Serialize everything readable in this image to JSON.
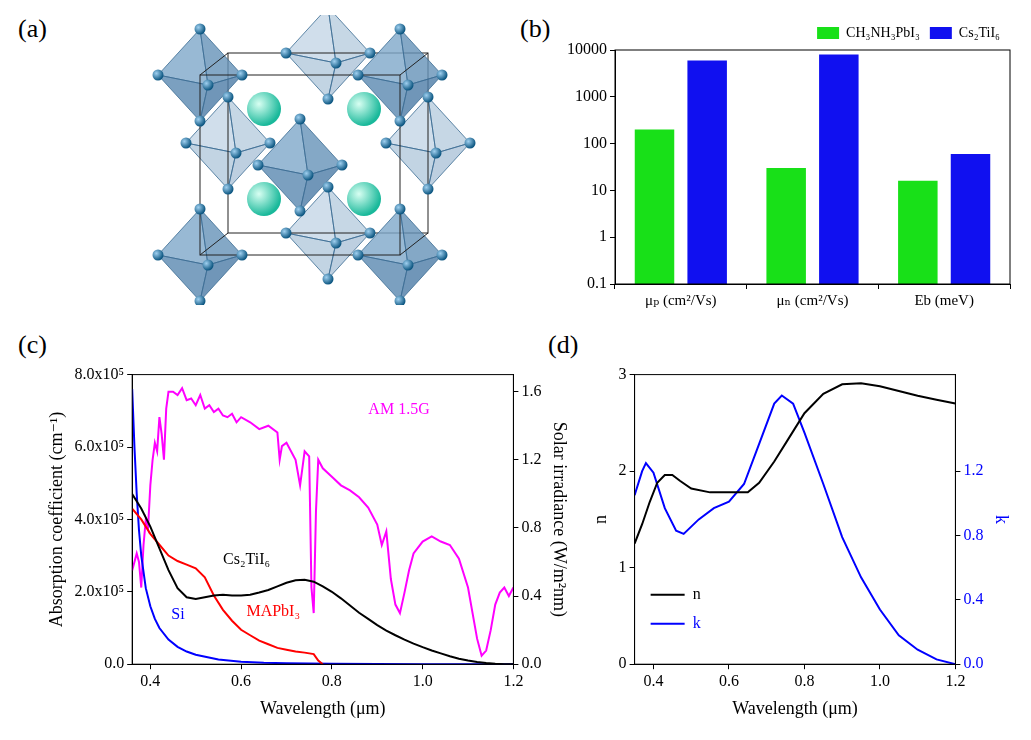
{
  "chart_data": [
    {
      "type": "diagram",
      "panel": "(a)"
    },
    {
      "type": "bar",
      "panel": "(b)",
      "categories": [
        "μₚ (cm²/Vs)",
        "μₙ (cm²/Vs)",
        "Eb (meV)"
      ],
      "series": [
        {
          "name": "CH₃NH₃PbI₃",
          "color": "#18e018",
          "values": [
            200,
            30,
            16
          ]
        },
        {
          "name": "Cs₂TiI₆",
          "color": "#1010f0",
          "values": [
            6000,
            8000,
            60
          ]
        }
      ],
      "log": "y",
      "ylim": [
        0.1,
        10000
      ],
      "yticks": [
        0.1,
        1,
        10,
        100,
        1000,
        10000
      ],
      "legend": "upper right",
      "grid": false
    },
    {
      "type": "line",
      "panel": "(c)",
      "x_label": "Wavelength (μm)",
      "y_label": "Absorption coefficient (cm⁻¹)",
      "y2_label": "Solar irradiance (W/m²nm)",
      "xlim": [
        0.36,
        1.2
      ],
      "xticks": [
        0.4,
        0.6,
        0.8,
        {
          "value": 1,
          "label": "1.0"
        },
        1.2
      ],
      "ylim": [
        0,
        800000
      ],
      "yticks": [
        {
          "value": 0,
          "label": "0.0"
        },
        {
          "value": 200000,
          "label": "2.0x10⁵"
        },
        {
          "value": 400000,
          "label": "4.0x10⁵"
        },
        {
          "value": 600000,
          "label": "6.0x10⁵"
        },
        {
          "value": 800000,
          "label": "8.0x10⁵"
        }
      ],
      "y2lim": [
        0,
        1.7
      ],
      "y2ticks": [
        {
          "value": 0,
          "label": "0.0"
        },
        0.4,
        0.8,
        1.2,
        1.6
      ],
      "grid": false,
      "series": [
        {
          "name": "Cs₂TiI₆",
          "color": "#000000",
          "x": [
            0.36,
            0.37,
            0.38,
            0.4,
            0.42,
            0.44,
            0.46,
            0.48,
            0.5,
            0.52,
            0.54,
            0.56,
            0.58,
            0.6,
            0.62,
            0.64,
            0.66,
            0.68,
            0.7,
            0.72,
            0.74,
            0.76,
            0.78,
            0.8,
            0.82,
            0.84,
            0.86,
            0.88,
            0.9,
            0.92,
            0.94,
            0.96,
            0.98,
            1.0,
            1.02,
            1.04,
            1.06,
            1.08,
            1.1,
            1.12,
            1.14,
            1.16,
            1.18,
            1.2
          ],
          "values": [
            470000,
            450000,
            430000,
            380000,
            320000,
            260000,
            210000,
            185000,
            180000,
            185000,
            190000,
            192000,
            190000,
            190000,
            192000,
            198000,
            205000,
            215000,
            225000,
            232000,
            233000,
            228000,
            215000,
            200000,
            182000,
            162000,
            142000,
            125000,
            108000,
            93000,
            80000,
            68000,
            57000,
            47000,
            38000,
            30000,
            22000,
            15000,
            10000,
            6000,
            3000,
            1000,
            0,
            0
          ]
        },
        {
          "name": "MAPbI₃",
          "color": "#ff0000",
          "x": [
            0.36,
            0.38,
            0.4,
            0.42,
            0.44,
            0.46,
            0.48,
            0.5,
            0.52,
            0.54,
            0.56,
            0.58,
            0.6,
            0.62,
            0.64,
            0.66,
            0.68,
            0.7,
            0.72,
            0.74,
            0.76,
            0.77,
            0.78
          ],
          "values": [
            430000,
            400000,
            360000,
            330000,
            300000,
            285000,
            275000,
            265000,
            240000,
            190000,
            150000,
            120000,
            95000,
            80000,
            65000,
            55000,
            45000,
            40000,
            35000,
            32000,
            28000,
            10000,
            0
          ]
        },
        {
          "name": "Si",
          "color": "#0000ff",
          "x": [
            0.36,
            0.365,
            0.37,
            0.375,
            0.38,
            0.39,
            0.4,
            0.41,
            0.42,
            0.44,
            0.46,
            0.48,
            0.5,
            0.55,
            0.6,
            0.65,
            0.7,
            0.8,
            0.9,
            1.0,
            1.1,
            1.2
          ],
          "values": [
            760000,
            600000,
            470000,
            370000,
            300000,
            210000,
            160000,
            125000,
            100000,
            68000,
            48000,
            35000,
            26000,
            13000,
            7000,
            4000,
            2500,
            1000,
            500,
            200,
            50,
            0
          ]
        },
        {
          "name": "AM 1.5G",
          "color": "#ff00ff",
          "axis": "y2",
          "x": [
            0.36,
            0.37,
            0.375,
            0.38,
            0.385,
            0.39,
            0.395,
            0.4,
            0.405,
            0.41,
            0.415,
            0.42,
            0.425,
            0.43,
            0.435,
            0.44,
            0.45,
            0.46,
            0.47,
            0.48,
            0.49,
            0.5,
            0.51,
            0.52,
            0.53,
            0.54,
            0.55,
            0.56,
            0.57,
            0.58,
            0.59,
            0.6,
            0.62,
            0.64,
            0.66,
            0.68,
            0.685,
            0.69,
            0.7,
            0.72,
            0.73,
            0.74,
            0.75,
            0.755,
            0.76,
            0.765,
            0.77,
            0.78,
            0.8,
            0.82,
            0.84,
            0.86,
            0.88,
            0.9,
            0.91,
            0.92,
            0.93,
            0.94,
            0.95,
            0.96,
            0.97,
            0.98,
            1.0,
            1.02,
            1.04,
            1.06,
            1.08,
            1.1,
            1.11,
            1.12,
            1.13,
            1.14,
            1.15,
            1.16,
            1.17,
            1.18,
            1.19,
            1.2
          ],
          "values": [
            0.55,
            0.65,
            0.6,
            0.45,
            0.7,
            0.85,
            0.8,
            1.05,
            1.2,
            1.3,
            1.25,
            1.45,
            1.35,
            1.2,
            1.5,
            1.6,
            1.6,
            1.58,
            1.62,
            1.55,
            1.56,
            1.52,
            1.58,
            1.5,
            1.52,
            1.48,
            1.5,
            1.46,
            1.45,
            1.47,
            1.42,
            1.45,
            1.42,
            1.38,
            1.4,
            1.36,
            1.2,
            1.28,
            1.3,
            1.2,
            1.05,
            1.25,
            1.22,
            0.45,
            0.3,
            0.9,
            1.2,
            1.15,
            1.1,
            1.05,
            1.02,
            0.98,
            0.92,
            0.82,
            0.7,
            0.78,
            0.5,
            0.35,
            0.3,
            0.42,
            0.55,
            0.65,
            0.72,
            0.75,
            0.72,
            0.7,
            0.62,
            0.45,
            0.3,
            0.15,
            0.05,
            0.08,
            0.2,
            0.35,
            0.42,
            0.45,
            0.4,
            0.45
          ]
        }
      ]
    },
    {
      "type": "line",
      "panel": "(d)",
      "x_label": "Wavelength (μm)",
      "y_label": "n",
      "y2_label": "k",
      "xlim": [
        0.35,
        1.2
      ],
      "xticks": [
        0.4,
        0.6,
        0.8,
        {
          "value": 1,
          "label": "1.0"
        },
        1.2
      ],
      "ylim": [
        0,
        3
      ],
      "yticks": [
        0,
        1,
        2,
        3
      ],
      "y2lim": [
        0,
        1.8
      ],
      "y2ticks": [
        {
          "value": 0,
          "label": "0.0"
        },
        0.4,
        0.8,
        1.2
      ],
      "grid": false,
      "legend": "lower left",
      "series": [
        {
          "name": "n",
          "color": "#000000",
          "x": [
            0.35,
            0.37,
            0.39,
            0.41,
            0.43,
            0.45,
            0.47,
            0.5,
            0.55,
            0.6,
            0.65,
            0.68,
            0.72,
            0.76,
            0.8,
            0.85,
            0.9,
            0.95,
            1.0,
            1.05,
            1.1,
            1.15,
            1.2
          ],
          "values": [
            1.25,
            1.45,
            1.68,
            1.88,
            1.96,
            1.96,
            1.9,
            1.82,
            1.78,
            1.78,
            1.78,
            1.88,
            2.1,
            2.35,
            2.6,
            2.8,
            2.9,
            2.91,
            2.88,
            2.83,
            2.78,
            2.74,
            2.7
          ]
        },
        {
          "name": "k",
          "color": "#0000ff",
          "axis": "y2",
          "x": [
            0.35,
            0.37,
            0.38,
            0.4,
            0.43,
            0.46,
            0.48,
            0.52,
            0.56,
            0.6,
            0.64,
            0.68,
            0.72,
            0.74,
            0.77,
            0.8,
            0.85,
            0.9,
            0.95,
            1.0,
            1.05,
            1.1,
            1.15,
            1.2
          ],
          "values": [
            1.05,
            1.2,
            1.25,
            1.19,
            0.97,
            0.83,
            0.81,
            0.9,
            0.97,
            1.01,
            1.12,
            1.37,
            1.62,
            1.67,
            1.62,
            1.44,
            1.12,
            0.79,
            0.54,
            0.34,
            0.18,
            0.09,
            0.03,
            0
          ]
        }
      ]
    }
  ]
}
